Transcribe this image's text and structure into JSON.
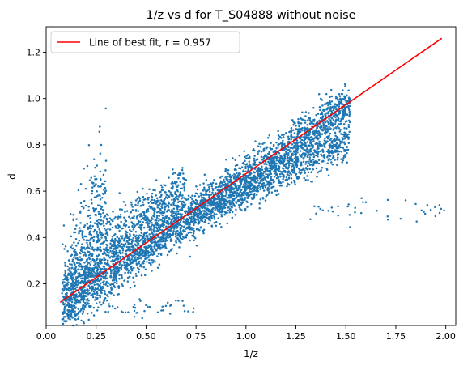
{
  "chart_data": {
    "type": "scatter",
    "title": "1/z vs d for T_S04888 without noise",
    "xlabel": "1/z",
    "ylabel": "d",
    "xlim": [
      0.0,
      2.05
    ],
    "ylim": [
      0.02,
      1.31
    ],
    "xticks": [
      0.0,
      0.25,
      0.5,
      0.75,
      1.0,
      1.25,
      1.5,
      1.75,
      2.0
    ],
    "xtick_labels": [
      "0.00",
      "0.25",
      "0.50",
      "0.75",
      "1.00",
      "1.25",
      "1.50",
      "1.75",
      "2.00"
    ],
    "yticks": [
      0.2,
      0.4,
      0.6,
      0.8,
      1.0,
      1.2
    ],
    "ytick_labels": [
      "0.2",
      "0.4",
      "0.6",
      "0.8",
      "1.0",
      "1.2"
    ],
    "grid": false,
    "legend": {
      "position": "top-left",
      "entries": [
        "Line of best fit, r = 0.957"
      ]
    },
    "series": [
      {
        "type": "scatter",
        "color": "#1f77b4",
        "clusters": [
          {
            "x_range": [
              0.08,
              1.52
            ],
            "y_center_at_x_start": 0.1,
            "y_center_at_x_end": 0.97,
            "spread": 0.05,
            "count": 2600
          },
          {
            "x_range": [
              0.7,
              1.52
            ],
            "y_center_at_x_start": 0.48,
            "y_center_at_x_end": 0.82,
            "spread": 0.04,
            "count": 900
          },
          {
            "x_range": [
              0.08,
              0.7
            ],
            "y_center_at_x_start": 0.2,
            "y_center_at_x_end": 0.58,
            "spread": 0.06,
            "count": 650
          },
          {
            "x_range": [
              0.08,
              0.3
            ],
            "y_center_at_x_start": 0.09,
            "y_center_at_x_end": 0.55,
            "spread": 0.15,
            "count": 420
          },
          {
            "x_range": [
              0.3,
              0.7
            ],
            "y_center_at_x_start": 0.45,
            "y_center_at_x_end": 0.6,
            "spread": 0.05,
            "count": 180
          },
          {
            "x_range": [
              0.1,
              0.75
            ],
            "y_center_at_x_start": 0.09,
            "y_center_at_x_end": 0.1,
            "spread": 0.02,
            "count": 60
          },
          {
            "x_range": [
              1.3,
              2.0
            ],
            "y_center_at_x_start": 0.52,
            "y_center_at_x_end": 0.51,
            "spread": 0.03,
            "count": 40
          }
        ]
      },
      {
        "type": "line",
        "name": "Line of best fit, r = 0.957",
        "color": "#ff0000",
        "x": [
          0.07,
          1.98
        ],
        "y": [
          0.12,
          1.26
        ]
      }
    ]
  }
}
